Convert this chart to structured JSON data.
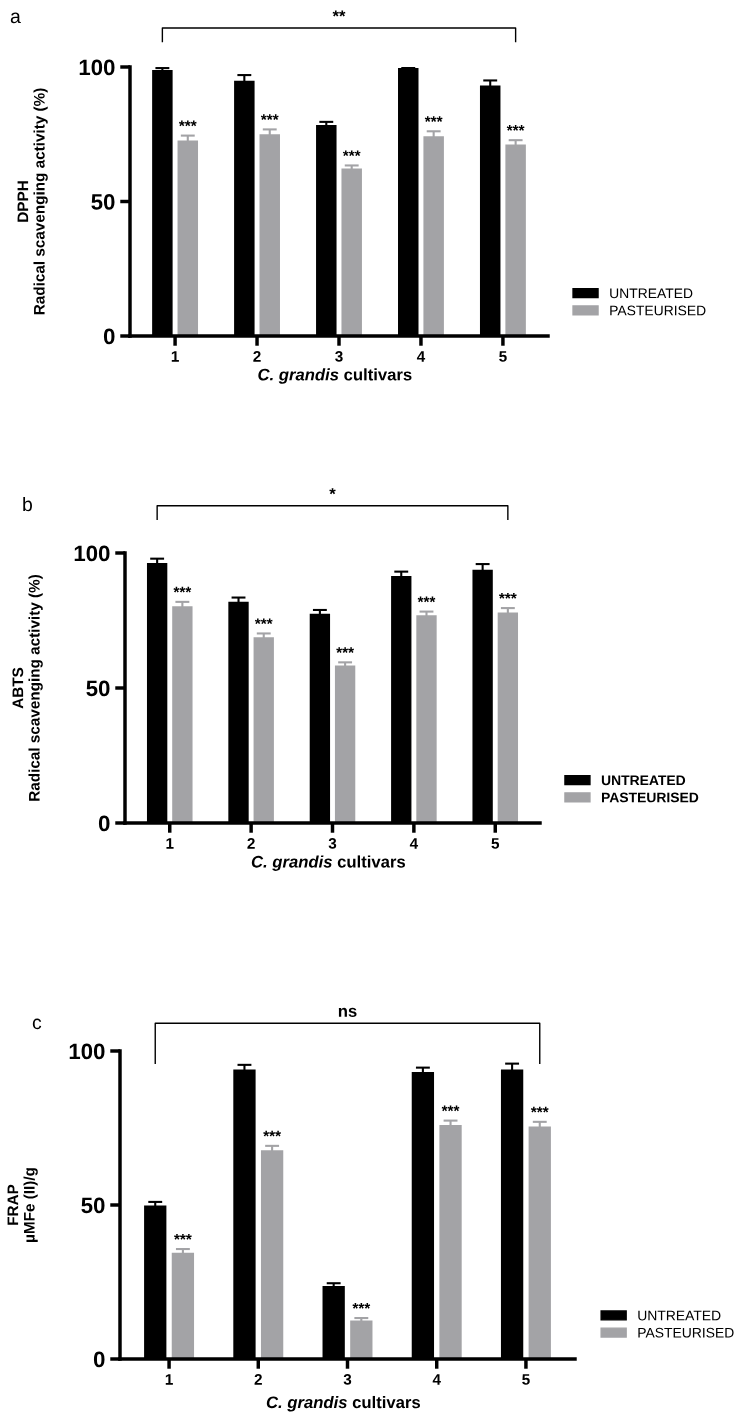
{
  "chart_data": [
    {
      "type": "bar",
      "title": "a",
      "categories": [
        "1",
        "2",
        "3",
        "4",
        "5"
      ],
      "xlabel": "C. grandis cultivars",
      "ylabel": "DPPH\nRadical scavenging activity (%)",
      "ylim": [
        0,
        100
      ],
      "yticks": [
        0,
        50,
        100
      ],
      "grid": false,
      "legend": "right",
      "series": [
        {
          "name": "UNTREATED",
          "color": "#000000",
          "values": [
            98.9,
            94.9,
            78.4,
            99.6,
            93.1
          ],
          "errors": [
            0.7,
            2.1,
            1.2,
            0.3,
            1.9
          ]
        },
        {
          "name": "PASTEURISED",
          "color": "#a3a3a6",
          "values": [
            72.7,
            75.0,
            62.3,
            74.3,
            71.2
          ],
          "errors": [
            1.8,
            1.8,
            1.1,
            1.8,
            1.6
          ]
        }
      ],
      "annotations": [
        {
          "text": "***",
          "x": "1",
          "y": 74.5
        },
        {
          "text": "***",
          "x": "2",
          "y": 76.8
        },
        {
          "text": "***",
          "x": "3",
          "y": 63.4
        },
        {
          "text": "***",
          "x": "4",
          "y": 76.1
        },
        {
          "text": "***",
          "x": "5",
          "y": 72.8
        },
        "**"
      ]
    },
    {
      "type": "bar",
      "title": "b",
      "categories": [
        "1",
        "2",
        "3",
        "4",
        "5"
      ],
      "xlabel": "C. grandis cultivars",
      "ylabel": "ABTS\nRadical scavenging activity (%)",
      "ylim": [
        0,
        100
      ],
      "yticks": [
        0,
        50,
        100
      ],
      "grid": false,
      "legend": "right",
      "series": [
        {
          "name": "UNTREATED",
          "color": "#000000",
          "values": [
            96.3,
            81.9,
            77.5,
            91.5,
            93.8
          ],
          "errors": [
            1.6,
            1.6,
            1.4,
            1.6,
            2.1
          ]
        },
        {
          "name": "PASTEURISED",
          "color": "#a3a3a6",
          "values": [
            80.3,
            68.8,
            58.3,
            76.9,
            78.0
          ],
          "errors": [
            1.6,
            1.4,
            1.2,
            1.4,
            1.6
          ]
        }
      ],
      "annotations": [
        {
          "text": "***",
          "x": "1",
          "y": 81.9
        },
        {
          "text": "***",
          "x": "2",
          "y": 70.2
        },
        {
          "text": "***",
          "x": "3",
          "y": 59.5
        },
        {
          "text": "***",
          "x": "4",
          "y": 78.3
        },
        {
          "text": "***",
          "x": "5",
          "y": 79.6
        },
        "*"
      ]
    },
    {
      "type": "bar",
      "title": "c",
      "categories": [
        "1",
        "2",
        "3",
        "4",
        "5"
      ],
      "xlabel": "C. grandis cultivars",
      "ylabel": "FRAP\nµMFe (II)/g",
      "ylim": [
        0,
        100
      ],
      "yticks": [
        0,
        50,
        100
      ],
      "grid": false,
      "legend": "right",
      "series": [
        {
          "name": "UNTREATED",
          "color": "#000000",
          "values": [
            49.8,
            94.0,
            23.7,
            93.2,
            94.0
          ],
          "errors": [
            1.2,
            1.5,
            0.9,
            1.4,
            1.9
          ]
        },
        {
          "name": "PASTEURISED",
          "color": "#a3a3a6",
          "values": [
            34.5,
            67.8,
            12.5,
            76.0,
            75.5
          ],
          "errors": [
            1.2,
            1.4,
            0.8,
            1.4,
            1.5
          ]
        }
      ],
      "annotations": [
        {
          "text": "***",
          "x": "1",
          "y": 35.7
        },
        {
          "text": "***",
          "x": "2",
          "y": 69.2
        },
        {
          "text": "***",
          "x": "3",
          "y": 13.3
        },
        {
          "text": "***",
          "x": "4",
          "y": 77.4
        },
        {
          "text": "***",
          "x": "5",
          "y": 77.0
        },
        "ns"
      ]
    }
  ]
}
